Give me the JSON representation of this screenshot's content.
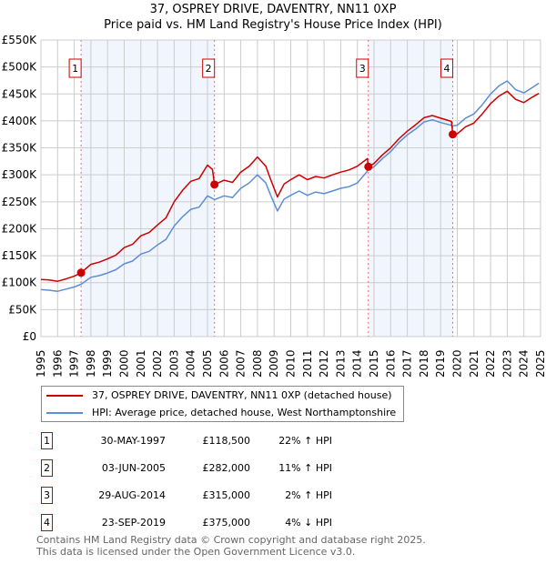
{
  "chart_data": {
    "type": "line",
    "title": "37, OSPREY DRIVE, DAVENTRY, NN11 0XP",
    "subtitle": "Price paid vs. HM Land Registry's House Price Index (HPI)",
    "xlabel": "",
    "ylabel": "",
    "xlim": [
      1995,
      2025
    ],
    "ylim": [
      0,
      550000
    ],
    "grid": true,
    "x_ticks": [
      "1995",
      "1996",
      "1997",
      "1998",
      "1999",
      "2000",
      "2001",
      "2002",
      "2003",
      "2004",
      "2005",
      "2006",
      "2007",
      "2008",
      "2009",
      "2010",
      "2011",
      "2012",
      "2013",
      "2014",
      "2015",
      "2016",
      "2017",
      "2018",
      "2019",
      "2020",
      "2021",
      "2022",
      "2023",
      "2024",
      "2025"
    ],
    "y_ticks": [
      {
        "v": 0,
        "label": "£0"
      },
      {
        "v": 50000,
        "label": "£50K"
      },
      {
        "v": 100000,
        "label": "£100K"
      },
      {
        "v": 150000,
        "label": "£150K"
      },
      {
        "v": 200000,
        "label": "£200K"
      },
      {
        "v": 250000,
        "label": "£250K"
      },
      {
        "v": 300000,
        "label": "£300K"
      },
      {
        "v": 350000,
        "label": "£350K"
      },
      {
        "v": 400000,
        "label": "£400K"
      },
      {
        "v": 450000,
        "label": "£450K"
      },
      {
        "v": 500000,
        "label": "£500K"
      },
      {
        "v": 550000,
        "label": "£550K"
      }
    ],
    "shaded_ranges": [
      [
        1997.41,
        2005.42
      ],
      [
        2014.66,
        2019.73
      ]
    ],
    "series": [
      {
        "name": "37, OSPREY DRIVE, DAVENTRY, NN11 0XP (detached house)",
        "color": "#cc0000",
        "x": [
          1995,
          1995.5,
          1996,
          1996.5,
          1997,
          1997.41,
          1998,
          1998.5,
          1999,
          1999.5,
          2000,
          2000.5,
          2001,
          2001.5,
          2002,
          2002.5,
          2003,
          2003.5,
          2004,
          2004.5,
          2005,
          2005.3,
          2005.42,
          2006,
          2006.5,
          2007,
          2007.5,
          2008,
          2008.5,
          2008.8,
          2009.2,
          2009.6,
          2010,
          2010.5,
          2011,
          2011.5,
          2012,
          2012.5,
          2013,
          2013.5,
          2014,
          2014.6,
          2014.66,
          2015,
          2015.5,
          2016,
          2016.5,
          2017,
          2017.5,
          2018,
          2018.5,
          2019,
          2019.65,
          2019.73,
          2020,
          2020.5,
          2021,
          2021.5,
          2022,
          2022.5,
          2023,
          2023.5,
          2024,
          2024.5,
          2024.9
        ],
        "y": [
          106,
          105,
          102.5,
          107,
          112,
          118.5,
          134,
          138,
          144,
          151,
          165,
          171,
          187,
          193,
          207,
          220,
          250,
          271,
          288,
          293,
          318,
          310,
          282,
          290,
          286,
          305,
          316,
          333,
          316,
          291,
          259,
          283,
          291,
          300,
          291,
          297,
          294,
          300,
          305,
          309,
          316,
          330,
          315,
          321,
          337,
          350,
          367,
          381,
          393,
          406,
          410,
          405,
          399,
          375,
          376,
          389,
          396,
          413,
          432,
          446,
          455,
          440,
          434,
          444,
          451
        ]
      },
      {
        "name": "HPI: Average price, detached house, West Northamptonshire",
        "color": "#5b8ed6",
        "x": [
          1995,
          1995.5,
          1996,
          1996.5,
          1997,
          1997.41,
          1998,
          1998.5,
          1999,
          1999.5,
          2000,
          2000.5,
          2001,
          2001.5,
          2002,
          2002.5,
          2003,
          2003.5,
          2004,
          2004.5,
          2005,
          2005.42,
          2006,
          2006.5,
          2007,
          2007.5,
          2008,
          2008.5,
          2008.8,
          2009.2,
          2009.6,
          2010,
          2010.5,
          2011,
          2011.5,
          2012,
          2012.5,
          2013,
          2013.5,
          2014,
          2014.66,
          2015,
          2015.5,
          2016,
          2016.5,
          2017,
          2017.5,
          2018,
          2018.5,
          2019,
          2019.73,
          2020,
          2020.5,
          2021,
          2021.5,
          2022,
          2022.5,
          2023,
          2023.5,
          2024,
          2024.5,
          2024.9
        ],
        "y": [
          87,
          86,
          84,
          88,
          92,
          97,
          110,
          113,
          118,
          124,
          135,
          140,
          153,
          158,
          170,
          180,
          205,
          222,
          236,
          240,
          261,
          254,
          261,
          258,
          275,
          285,
          300,
          285,
          262,
          233,
          255,
          262,
          270,
          262,
          268,
          265,
          270,
          275,
          278,
          285,
          309,
          315,
          330,
          343,
          360,
          374,
          385,
          398,
          402,
          397,
          391,
          392,
          405,
          413,
          430,
          450,
          465,
          474,
          458,
          452,
          462,
          470
        ]
      }
    ],
    "y_unit_multiplier": 1000,
    "sales": [
      {
        "num": "1",
        "x": 1997.41,
        "price": 118500
      },
      {
        "num": "2",
        "x": 2005.42,
        "price": 282000
      },
      {
        "num": "3",
        "x": 2014.66,
        "price": 315000
      },
      {
        "num": "4",
        "x": 2019.73,
        "price": 375000
      }
    ]
  },
  "legend": [
    {
      "label": "37, OSPREY DRIVE, DAVENTRY, NN11 0XP (detached house)",
      "color": "#cc0000"
    },
    {
      "label": "HPI: Average price, detached house, West Northamptonshire",
      "color": "#5b8ed6"
    }
  ],
  "table": [
    {
      "num": "1",
      "date": "30-MAY-1997",
      "price": "£118,500",
      "pct": "22% ↑ HPI"
    },
    {
      "num": "2",
      "date": "03-JUN-2005",
      "price": "£282,000",
      "pct": "11% ↑ HPI"
    },
    {
      "num": "3",
      "date": "29-AUG-2014",
      "price": "£315,000",
      "pct": "2% ↑ HPI"
    },
    {
      "num": "4",
      "date": "23-SEP-2019",
      "price": "£375,000",
      "pct": "4% ↓ HPI"
    }
  ],
  "footer": {
    "line1": "Contains HM Land Registry data © Crown copyright and database right 2025.",
    "line2": "This data is licensed under the Open Government Licence v3.0."
  }
}
